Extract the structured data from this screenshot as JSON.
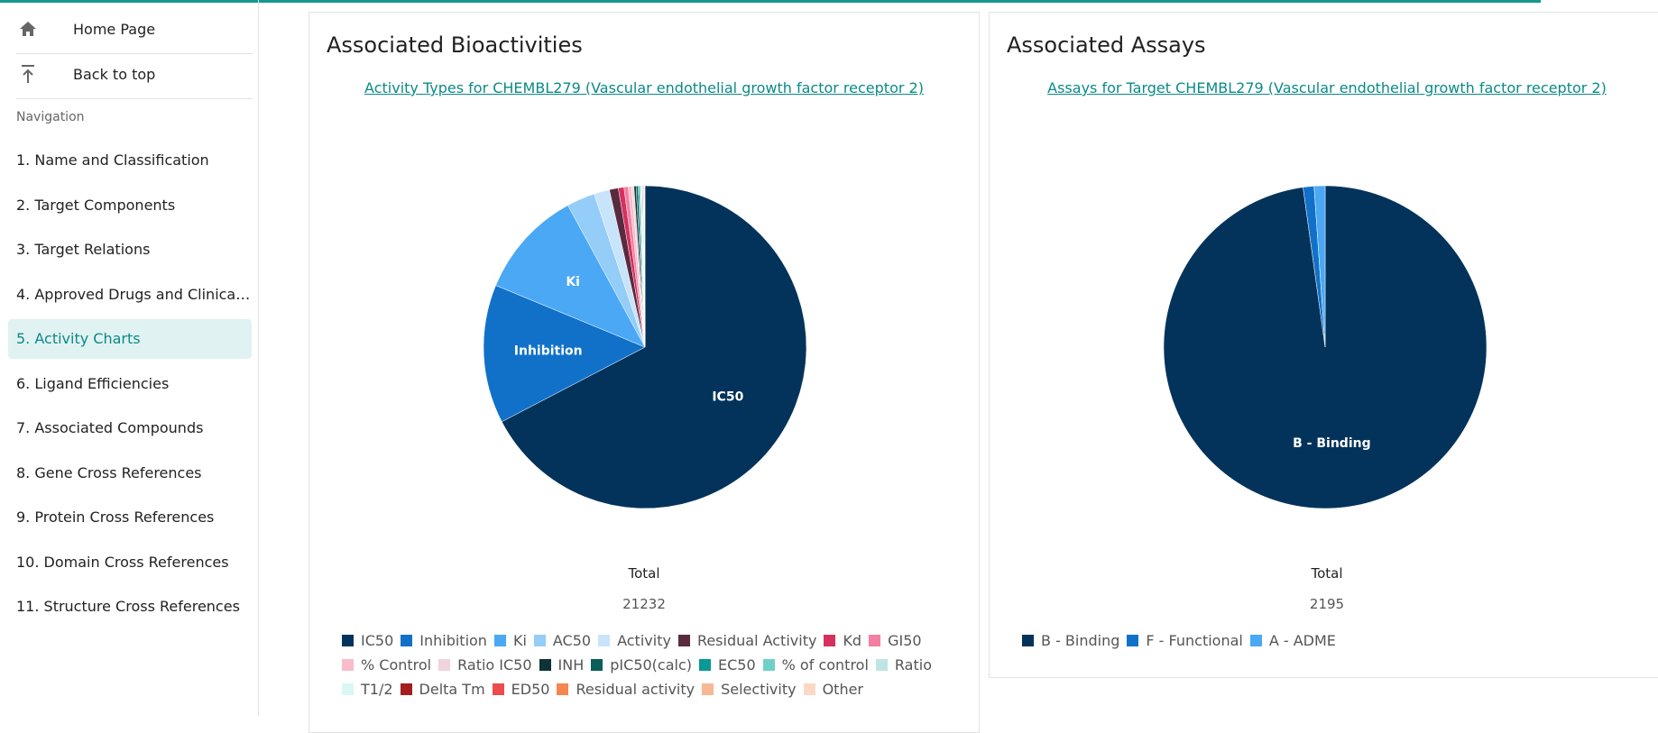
{
  "sidebar": {
    "top_links": [
      "Home Page",
      "Back to top"
    ],
    "nav_heading": "Navigation",
    "items": [
      "1. Name and Classification",
      "2. Target Components",
      "3. Target Relations",
      "4. Approved Drugs and Clinical ...",
      "5. Activity Charts",
      "6. Ligand Efficiencies",
      "7. Associated Compounds",
      "8. Gene Cross References",
      "9. Protein Cross References",
      "10. Domain Cross References",
      "11. Structure Cross References"
    ],
    "active": 4
  },
  "chart_data": [
    {
      "type": "pie",
      "title": "Associated Bioactivities",
      "subtitle": "Activity Types for CHEMBL279 (Vascular endothelial growth factor receptor 2)",
      "total_label": "Total",
      "total": 21232,
      "legend": "left",
      "categories": [
        "IC50",
        "Inhibition",
        "Ki",
        "AC50",
        "Activity",
        "Residual Activity",
        "Kd",
        "GI50",
        "% Control",
        "Ratio IC50",
        "INH",
        "pIC50(calc)",
        "EC50",
        "% of control",
        "Ratio",
        "T1/2",
        "Delta Tm",
        "ED50",
        "Residual activity",
        "Selectivity",
        "Other"
      ],
      "values": [
        14300,
        2950,
        2300,
        600,
        330,
        190,
        120,
        90,
        70,
        50,
        45,
        40,
        30,
        25,
        20,
        18,
        15,
        12,
        10,
        8,
        9
      ],
      "colors": [
        "#03335a",
        "#1171c9",
        "#4aa8f5",
        "#93cdf8",
        "#c8e4fb",
        "#5a2a3e",
        "#d6305f",
        "#f47fa0",
        "#f9bccb",
        "#f1d3da",
        "#0e3334",
        "#0b5e59",
        "#0a9a96",
        "#6fd0c8",
        "#bfe5e2",
        "#d9f7f5",
        "#a61d1d",
        "#ec4c4c",
        "#f4864f",
        "#f8b894",
        "#fcd8c4"
      ]
    },
    {
      "type": "pie",
      "title": "Associated Assays",
      "subtitle": "Assays for Target CHEMBL279 (Vascular endothelial growth factor receptor 2)",
      "total_label": "Total",
      "total": 2195,
      "legend": "left",
      "categories": [
        "B - Binding",
        "F - Functional",
        "A - ADME"
      ],
      "values": [
        2147,
        24,
        24
      ],
      "colors": [
        "#03335a",
        "#1171c9",
        "#4aa8f5"
      ]
    }
  ]
}
